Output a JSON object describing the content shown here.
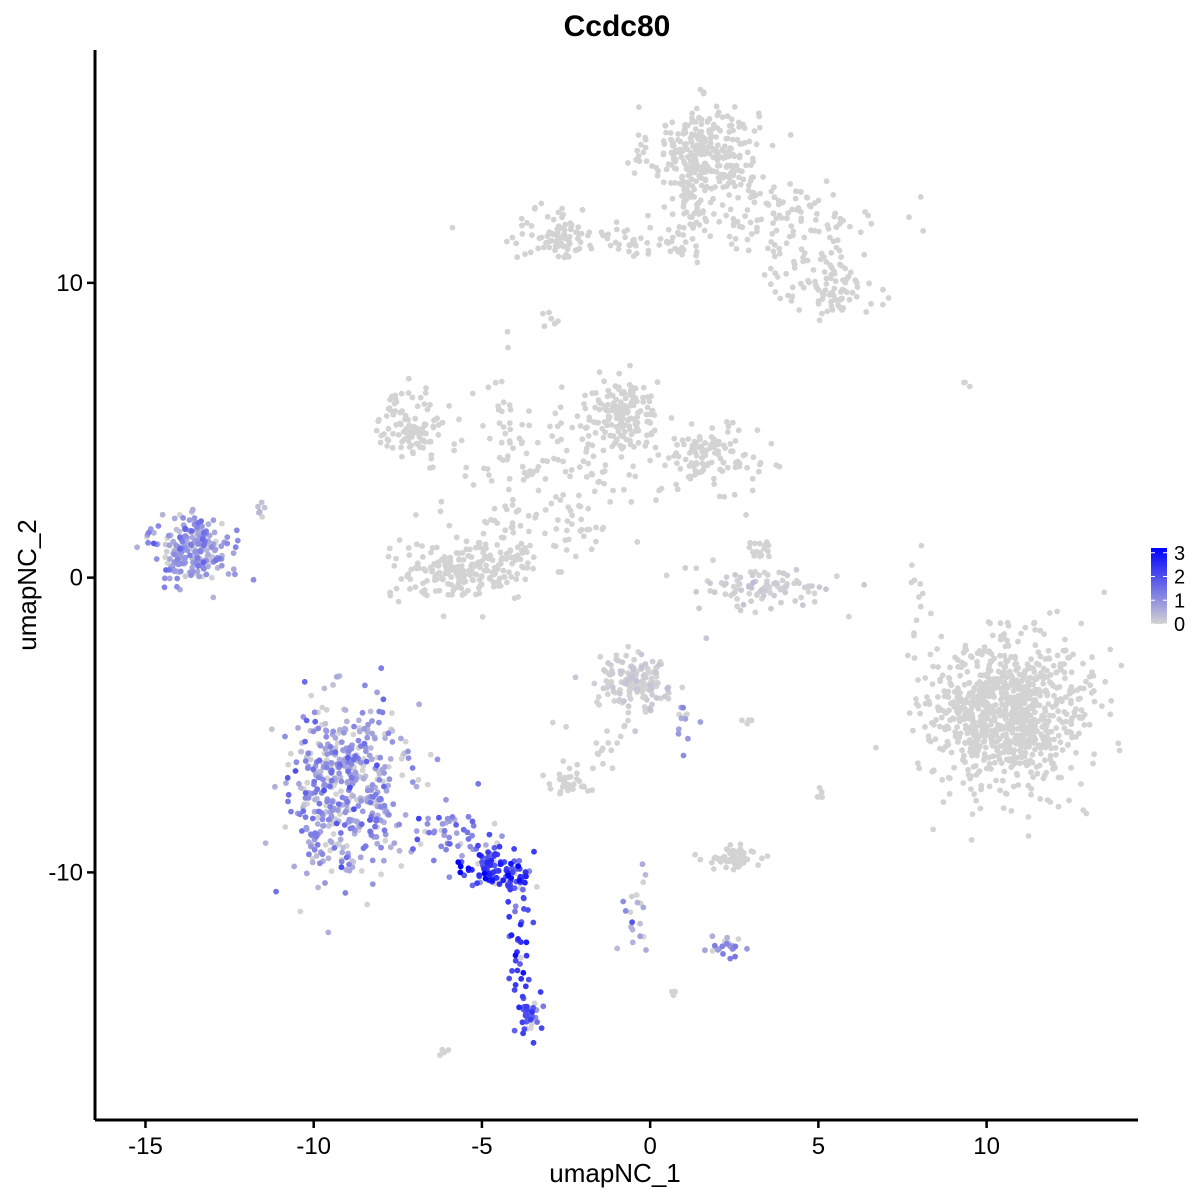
{
  "chart_data": {
    "type": "scatter",
    "title": "Ccdc80",
    "xlabel": "umapNC_1",
    "ylabel": "umapNC_2",
    "xlim": [
      -16.5,
      14.5
    ],
    "ylim": [
      -18.4,
      17.9
    ],
    "x_ticks": [
      -15,
      -10,
      -5,
      0,
      5,
      10
    ],
    "x_tick_labels": [
      "-15",
      "-10",
      "-5",
      "0",
      "5",
      "10"
    ],
    "y_ticks": [
      -10,
      0,
      10
    ],
    "y_tick_labels": [
      "-10",
      "0",
      "10"
    ],
    "grid": false,
    "legend": {
      "placement": "right",
      "title": "",
      "min": 0,
      "max": 3.2,
      "ticks": [
        0,
        1,
        2,
        3
      ],
      "tick_labels": [
        "0",
        "1",
        "2",
        "3"
      ],
      "low_color": "#d3d3d3",
      "high_color": "#0000ff"
    },
    "clusters": [
      {
        "label": "top hub",
        "cx": 1.6,
        "cy": 14.4,
        "sx": 0.8,
        "sy": 0.8,
        "n": 320,
        "expr": 0,
        "spread": 0.0
      },
      {
        "label": "top hub neck",
        "cx": 1.2,
        "cy": 12.2,
        "sx": 0.35,
        "sy": 0.7,
        "n": 45,
        "expr": 0,
        "spread": 0.0
      },
      {
        "label": "top arm left",
        "cx": -1.0,
        "cy": 11.4,
        "sx": 1.9,
        "sy": 0.3,
        "n": 70,
        "expr": 0,
        "spread": 0.0
      },
      {
        "label": "top left blob",
        "cx": -2.6,
        "cy": 11.7,
        "sx": 0.45,
        "sy": 0.45,
        "n": 60,
        "expr": 0,
        "spread": 0.0
      },
      {
        "label": "top arm right",
        "cx": 4.0,
        "cy": 12.3,
        "sx": 1.4,
        "sy": 0.6,
        "n": 110,
        "expr": 0,
        "spread": 0.0
      },
      {
        "label": "right tail",
        "cx": 5.0,
        "cy": 10.2,
        "sx": 0.9,
        "sy": 0.6,
        "n": 70,
        "expr": 0,
        "spread": 0.0
      },
      {
        "label": "right tail blob",
        "cx": 5.5,
        "cy": 9.6,
        "sx": 0.3,
        "sy": 0.35,
        "n": 35,
        "expr": 0,
        "spread": 0.0
      },
      {
        "label": "small stray",
        "cx": -3.0,
        "cy": 8.8,
        "sx": 0.15,
        "sy": 0.15,
        "n": 6,
        "expr": 0,
        "spread": 0.0
      },
      {
        "label": "middle left loop",
        "cx": -7.1,
        "cy": 5.2,
        "sx": 0.5,
        "sy": 0.6,
        "n": 100,
        "expr": 0,
        "spread": 0.0
      },
      {
        "label": "middle hub",
        "cx": -0.8,
        "cy": 5.5,
        "sx": 0.55,
        "sy": 0.6,
        "n": 160,
        "expr": 0,
        "spread": 0.0
      },
      {
        "label": "middle right blob",
        "cx": 1.8,
        "cy": 4.1,
        "sx": 0.7,
        "sy": 0.5,
        "n": 110,
        "expr": 0,
        "spread": 0.0
      },
      {
        "label": "middle network",
        "cx": -3.0,
        "cy": 4.0,
        "sx": 1.6,
        "sy": 1.1,
        "n": 120,
        "expr": 0,
        "spread": 0.0
      },
      {
        "label": "middle strand",
        "cx": -4.2,
        "cy": 6.0,
        "sx": 0.2,
        "sy": 0.9,
        "n": 18,
        "expr": 0,
        "spread": 0.0
      },
      {
        "label": "middle bottom bowl",
        "cx": -5.6,
        "cy": 0.2,
        "sx": 1.1,
        "sy": 0.5,
        "n": 200,
        "expr": 0,
        "spread": 0.0
      },
      {
        "label": "bowl arm",
        "cx": -4.0,
        "cy": 1.5,
        "sx": 0.6,
        "sy": 0.6,
        "n": 40,
        "expr": 0,
        "spread": 0.0
      },
      {
        "label": "center strand",
        "cx": -2.0,
        "cy": 1.7,
        "sx": 0.6,
        "sy": 0.6,
        "n": 25,
        "expr": 0,
        "spread": 0.0
      },
      {
        "label": "small right arc",
        "cx": 3.3,
        "cy": -0.4,
        "sx": 1.0,
        "sy": 0.4,
        "n": 90,
        "expr": 0.05,
        "spread": 0.1
      },
      {
        "label": "small right arc top",
        "cx": 3.2,
        "cy": 0.8,
        "sx": 0.2,
        "sy": 0.5,
        "n": 20,
        "expr": 0,
        "spread": 0.0
      },
      {
        "label": "big right cluster",
        "cx": 10.6,
        "cy": -4.6,
        "sx": 1.2,
        "sy": 1.3,
        "n": 900,
        "expr": 0,
        "spread": 0.0
      },
      {
        "label": "far right strand",
        "cx": 7.9,
        "cy": -0.5,
        "sx": 0.15,
        "sy": 0.7,
        "n": 12,
        "expr": 0,
        "spread": 0.0
      },
      {
        "label": "lone pair",
        "cx": 9.5,
        "cy": 6.6,
        "sx": 0.15,
        "sy": 0.05,
        "n": 3,
        "expr": 0,
        "spread": 0.0
      },
      {
        "label": "far left cluster",
        "cx": -13.6,
        "cy": 1.0,
        "sx": 0.6,
        "sy": 0.6,
        "n": 220,
        "expr": 0.9,
        "spread": 0.35
      },
      {
        "label": "far left tail",
        "cx": -11.6,
        "cy": 2.3,
        "sx": 0.1,
        "sy": 0.2,
        "n": 6,
        "expr": 0.5,
        "spread": 0.2
      },
      {
        "label": "lower center blob",
        "cx": -0.5,
        "cy": -3.6,
        "sx": 0.5,
        "sy": 0.45,
        "n": 150,
        "expr": 0.05,
        "spread": 0.1
      },
      {
        "label": "lower center stem",
        "cx": -1.5,
        "cy": -5.5,
        "sx": 0.5,
        "sy": 0.6,
        "n": 20,
        "expr": 0,
        "spread": 0.0
      },
      {
        "label": "lower small blob",
        "cx": -2.4,
        "cy": -6.9,
        "sx": 0.3,
        "sy": 0.2,
        "n": 35,
        "expr": 0,
        "spread": 0.0
      },
      {
        "label": "lower strand",
        "cx": 1.0,
        "cy": -5.0,
        "sx": 0.2,
        "sy": 0.4,
        "n": 12,
        "expr": 0.8,
        "spread": 0.3
      },
      {
        "label": "lower left hub",
        "cx": -9.0,
        "cy": -7.2,
        "sx": 0.9,
        "sy": 1.5,
        "n": 480,
        "expr": 0.85,
        "spread": 0.45
      },
      {
        "label": "lower left neck",
        "cx": -6.0,
        "cy": -8.8,
        "sx": 0.6,
        "sy": 0.5,
        "n": 50,
        "expr": 1.1,
        "spread": 0.4
      },
      {
        "label": "lower left arm",
        "cx": -4.6,
        "cy": -9.8,
        "sx": 0.5,
        "sy": 0.35,
        "n": 90,
        "expr": 2.3,
        "spread": 0.5
      },
      {
        "label": "lower left arm end",
        "cx": -4.0,
        "cy": -10.3,
        "sx": 0.25,
        "sy": 0.25,
        "n": 25,
        "expr": 2.2,
        "spread": 0.4
      },
      {
        "label": "lower left stem",
        "cx": -3.9,
        "cy": -12.3,
        "sx": 0.15,
        "sy": 0.9,
        "n": 30,
        "expr": 2.1,
        "spread": 0.4
      },
      {
        "label": "lower left foot",
        "cx": -3.6,
        "cy": -14.7,
        "sx": 0.18,
        "sy": 0.5,
        "n": 40,
        "expr": 1.9,
        "spread": 0.4
      },
      {
        "label": "lower middle strand",
        "cx": -0.4,
        "cy": -11.2,
        "sx": 0.25,
        "sy": 0.8,
        "n": 20,
        "expr": 0.6,
        "spread": 0.4
      },
      {
        "label": "lower middle cluster",
        "cx": 2.5,
        "cy": -9.5,
        "sx": 0.45,
        "sy": 0.2,
        "n": 50,
        "expr": 0,
        "spread": 0.0
      },
      {
        "label": "lower middle blob",
        "cx": 2.3,
        "cy": -12.5,
        "sx": 0.25,
        "sy": 0.2,
        "n": 25,
        "expr": 0.9,
        "spread": 0.3
      },
      {
        "label": "lower stray",
        "cx": -6.1,
        "cy": -16.1,
        "sx": 0.12,
        "sy": 0.08,
        "n": 4,
        "expr": 0,
        "spread": 0.0
      },
      {
        "label": "lower stray 2",
        "cx": 0.6,
        "cy": -14.0,
        "sx": 0.1,
        "sy": 0.08,
        "n": 3,
        "expr": 0,
        "spread": 0.0
      },
      {
        "label": "lower right stray",
        "cx": 5.1,
        "cy": -7.4,
        "sx": 0.05,
        "sy": 0.2,
        "n": 5,
        "expr": 0,
        "spread": 0.0
      },
      {
        "label": "lower right stray 2",
        "cx": 2.9,
        "cy": -4.9,
        "sx": 0.2,
        "sy": 0.05,
        "n": 5,
        "expr": 0,
        "spread": 0.0
      }
    ]
  }
}
